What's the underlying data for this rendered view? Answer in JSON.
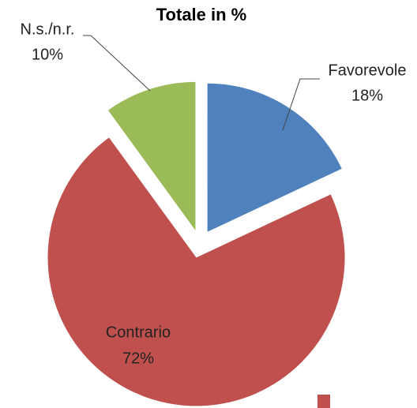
{
  "chart_data": {
    "type": "pie",
    "title": "Totale in %",
    "categories": [
      "Favorevole",
      "Contrario",
      "N.s./n.r."
    ],
    "values": [
      18,
      72,
      10
    ],
    "value_labels": [
      "18%",
      "72%",
      "10%"
    ],
    "colors": [
      "#4f81bd",
      "#c0504d",
      "#9bbb59"
    ]
  }
}
